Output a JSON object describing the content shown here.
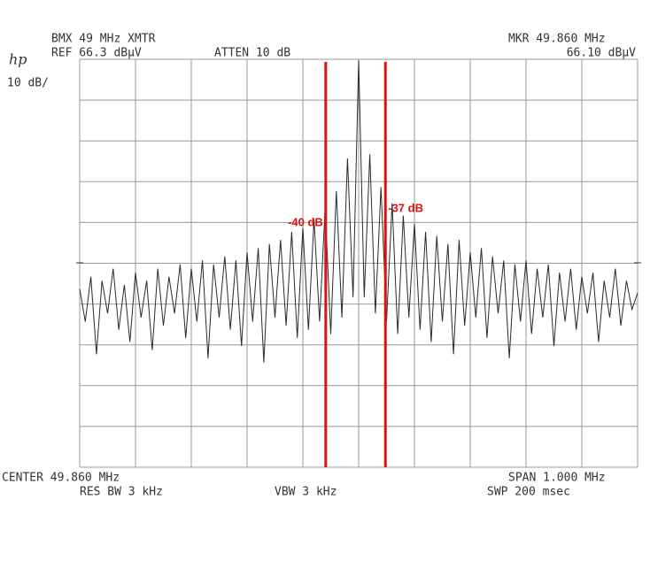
{
  "chart_data": {
    "type": "line",
    "title": "BMX 49 MHz XMTR",
    "ref_label": "REF 66.3 dBµV",
    "atten_label": "ATTEN 10 dB",
    "marker_freq_label": "MKR 49.860 MHz",
    "marker_level_label": "66.10 dBµV",
    "logo": "hp",
    "scale_label": "10 dB/",
    "center_label": "CENTER 49.860 MHz",
    "span_label": "SPAN 1.000 MHz",
    "rbw_label": "RES BW 3 kHz",
    "vbw_label": "VBW 3 kHz",
    "sweep_label": "SWP 200 msec",
    "xlim": [
      49.36,
      50.36
    ],
    "ylim": [
      -33.7,
      66.3
    ],
    "grid": true,
    "x": [
      49.36,
      49.37,
      49.38,
      49.39,
      49.4,
      49.41,
      49.42,
      49.43,
      49.44,
      49.45,
      49.46,
      49.47,
      49.48,
      49.49,
      49.5,
      49.51,
      49.52,
      49.53,
      49.54,
      49.55,
      49.56,
      49.57,
      49.58,
      49.59,
      49.6,
      49.61,
      49.62,
      49.63,
      49.64,
      49.65,
      49.66,
      49.67,
      49.68,
      49.69,
      49.7,
      49.71,
      49.72,
      49.73,
      49.74,
      49.75,
      49.76,
      49.77,
      49.78,
      49.79,
      49.8,
      49.81,
      49.82,
      49.83,
      49.84,
      49.85,
      49.86,
      49.87,
      49.88,
      49.89,
      49.9,
      49.91,
      49.92,
      49.93,
      49.94,
      49.95,
      49.96,
      49.97,
      49.98,
      49.99,
      50.0,
      50.01,
      50.02,
      50.03,
      50.04,
      50.05,
      50.06,
      50.07,
      50.08,
      50.09,
      50.1,
      50.11,
      50.12,
      50.13,
      50.14,
      50.15,
      50.16,
      50.17,
      50.18,
      50.19,
      50.2,
      50.21,
      50.22,
      50.23,
      50.24,
      50.25,
      50.26,
      50.27,
      50.28,
      50.29,
      50.3,
      50.31,
      50.32,
      50.33,
      50.34,
      50.35,
      50.36
    ],
    "series": [
      {
        "color": "#2a2a2a",
        "values": [
          10,
          2,
          13,
          -6,
          12,
          4,
          15,
          0,
          11,
          -3,
          14,
          3,
          12,
          -5,
          15,
          1,
          13,
          4,
          16,
          -2,
          15,
          2,
          17,
          -7,
          16,
          3,
          18,
          0,
          17,
          -4,
          19,
          2,
          20,
          -8,
          21,
          3,
          22,
          1,
          24,
          -2,
          25,
          0,
          27,
          2,
          30,
          -1,
          34,
          3,
          42,
          8,
          66.1,
          8,
          43,
          4,
          35,
          2,
          31,
          -1,
          28,
          3,
          26,
          0,
          24,
          -3,
          23,
          2,
          21,
          -6,
          22,
          1,
          19,
          3,
          20,
          -2,
          18,
          4,
          17,
          -7,
          16,
          2,
          17,
          -1,
          15,
          3,
          16,
          -4,
          14,
          2,
          15,
          0,
          13,
          4,
          14,
          -3,
          12,
          3,
          15,
          1,
          12,
          5,
          9
        ]
      }
    ],
    "markers": [
      {
        "x": 49.801,
        "color": "#e01010",
        "label": "-40 dB"
      },
      {
        "x": 49.908,
        "color": "#e01010",
        "label": "-37 dB"
      }
    ]
  }
}
